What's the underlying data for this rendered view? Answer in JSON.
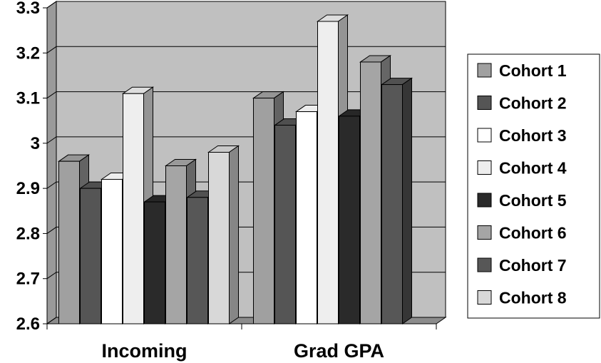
{
  "chart_data": {
    "type": "bar",
    "categories": [
      "Incoming",
      "Grad GPA"
    ],
    "series": [
      {
        "name": "Cohort 1",
        "values": [
          2.96,
          3.1
        ],
        "color": "#A0A0A0"
      },
      {
        "name": "Cohort 2",
        "values": [
          2.9,
          3.04
        ],
        "color": "#555555"
      },
      {
        "name": "Cohort 3",
        "values": [
          2.92,
          3.07
        ],
        "color": "#FFFFFF"
      },
      {
        "name": "Cohort 4",
        "values": [
          3.11,
          3.27
        ],
        "color": "#EEEEEE"
      },
      {
        "name": "Cohort 5",
        "values": [
          2.87,
          3.06
        ],
        "color": "#2A2A2A"
      },
      {
        "name": "Cohort 6",
        "values": [
          2.95,
          3.18
        ],
        "color": "#A5A5A5"
      },
      {
        "name": "Cohort 7",
        "values": [
          2.88,
          3.13
        ],
        "color": "#575757"
      },
      {
        "name": "Cohort 8",
        "values": [
          2.98,
          null
        ],
        "color": "#D8D8D8"
      }
    ],
    "yticks": [
      "2.6",
      "2.7",
      "2.8",
      "2.9",
      "3",
      "3.1",
      "3.2",
      "3.3"
    ],
    "ylim": [
      2.6,
      3.3
    ],
    "title": "",
    "xlabel": "",
    "ylabel": "",
    "grid": true,
    "legend": "right",
    "wall_color": "#C0C0C0"
  }
}
